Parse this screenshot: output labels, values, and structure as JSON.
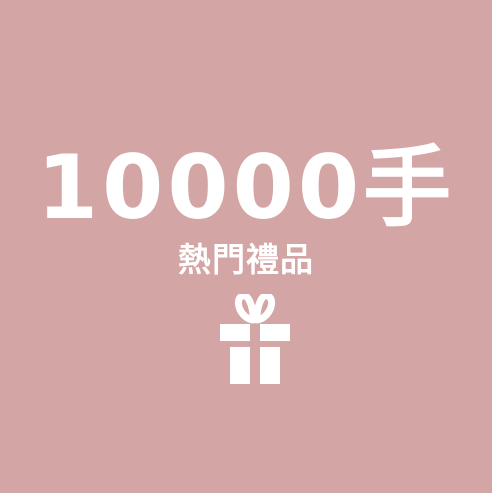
{
  "banner": {
    "headline": "10000手",
    "subtitle": "熱門禮品",
    "icon": "gift-icon",
    "background_color": "#d3a5a4",
    "text_color": "#ffffff"
  }
}
